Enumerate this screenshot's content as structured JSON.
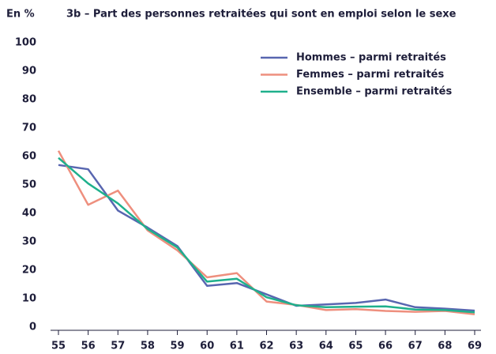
{
  "chart_data": {
    "type": "line",
    "unit_label": "En %",
    "title": "3b – Part des personnes retraitées qui sont en emploi selon le sexe",
    "x": [
      55,
      56,
      57,
      58,
      59,
      60,
      61,
      62,
      63,
      64,
      65,
      66,
      67,
      68,
      69
    ],
    "xlim": [
      55,
      69
    ],
    "xticks": [
      55,
      56,
      57,
      58,
      59,
      60,
      61,
      62,
      63,
      64,
      65,
      66,
      67,
      68,
      69
    ],
    "ylim": [
      0,
      100
    ],
    "yticks": [
      0,
      10,
      20,
      30,
      40,
      50,
      60,
      70,
      80,
      90,
      100
    ],
    "grid": false,
    "legend": "upper right",
    "series": [
      {
        "name": "Hommes – parmi retraités",
        "color": "#5866b0",
        "values": [
          57,
          55.5,
          41,
          35,
          28.5,
          14.5,
          15.5,
          11.5,
          7.5,
          8,
          8.5,
          9.7,
          7,
          6.5,
          5.8
        ]
      },
      {
        "name": "Femmes – parmi retraités",
        "color": "#ee8f7e",
        "values": [
          62,
          43,
          48,
          34,
          27,
          17.5,
          19,
          9,
          7.8,
          6,
          6.3,
          5.7,
          5.4,
          5.7,
          4.5
        ]
      },
      {
        "name": "Ensemble – parmi retraités",
        "color": "#1fb08c",
        "values": [
          59.5,
          50.5,
          43.5,
          34.5,
          28,
          16,
          17,
          10.5,
          7.7,
          7,
          7.2,
          7.3,
          6.2,
          6,
          5.2
        ]
      }
    ]
  }
}
